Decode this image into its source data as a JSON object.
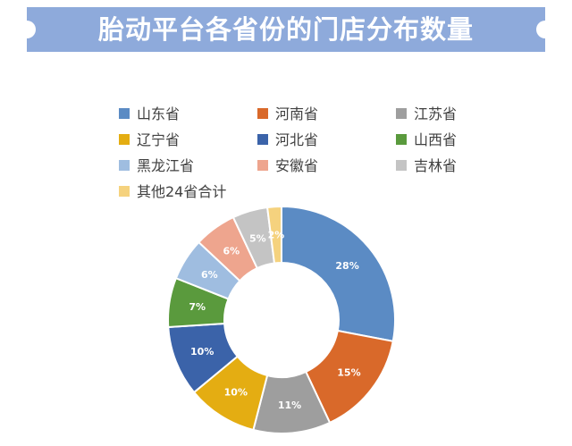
{
  "header": {
    "title": "胎动平台各省份的门店分布数量"
  },
  "colors": {
    "banner": "#8eaadb"
  },
  "chart_data": {
    "type": "pie",
    "variant": "donut",
    "title": "胎动平台各省份的门店分布数量",
    "legend_position": "top",
    "categories": [
      "山东省",
      "河南省",
      "江苏省",
      "辽宁省",
      "河北省",
      "山西省",
      "黑龙江省",
      "安徽省",
      "吉林省",
      "其他24省合计"
    ],
    "values": [
      28,
      15,
      11,
      10,
      10,
      7,
      6,
      6,
      5,
      2
    ],
    "labels": [
      "28%",
      "15%",
      "11%",
      "10%",
      "10%",
      "7%",
      "6%",
      "6%",
      "5%",
      "2%"
    ],
    "colors": [
      "#5b8bc4",
      "#d9692a",
      "#9e9e9e",
      "#e4ad12",
      "#3b63a9",
      "#5a9a3d",
      "#9fbde0",
      "#eea58e",
      "#c4c4c4",
      "#f5d27e"
    ]
  }
}
